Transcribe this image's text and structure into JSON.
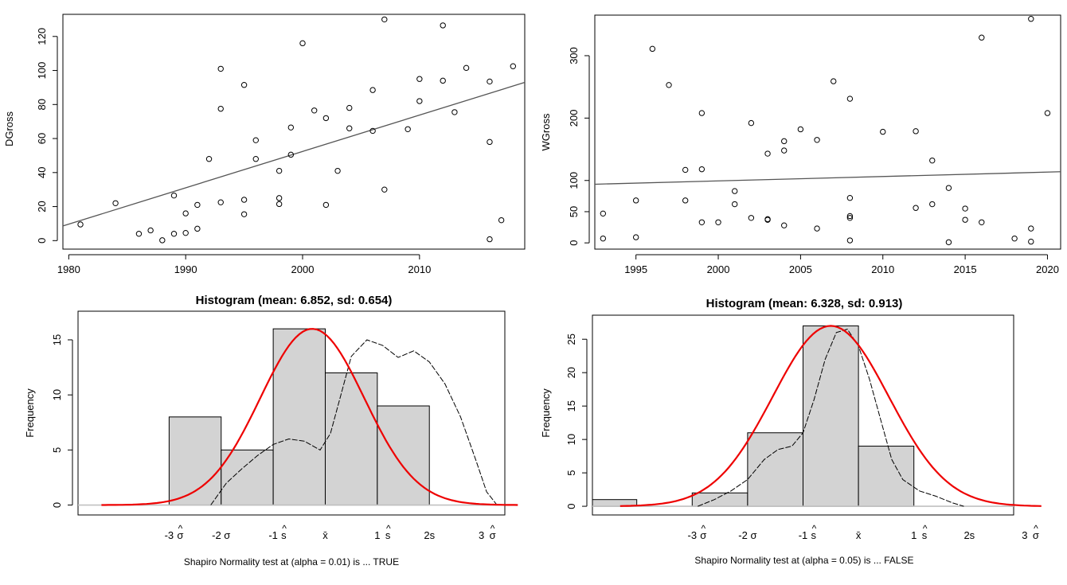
{
  "chart_data": [
    {
      "type": "scatter",
      "ylabel": "DGross",
      "xlim": [
        1979.5,
        2019
      ],
      "ylim": [
        -5,
        133
      ],
      "xticks": [
        1980,
        1990,
        2000,
        2010
      ],
      "yticks": [
        0,
        20,
        40,
        60,
        80,
        100,
        120
      ],
      "trend": {
        "x1": 1979.5,
        "y1": 8.6,
        "x2": 2019,
        "y2": 93
      },
      "points": [
        [
          1981,
          9.5
        ],
        [
          1984,
          22
        ],
        [
          1986,
          4
        ],
        [
          1987,
          6
        ],
        [
          1988,
          0.2
        ],
        [
          1989,
          4
        ],
        [
          1989,
          26.5
        ],
        [
          1990,
          16
        ],
        [
          1990,
          4.5
        ],
        [
          1991,
          7
        ],
        [
          1991,
          21
        ],
        [
          1992,
          48
        ],
        [
          1993,
          101
        ],
        [
          1993,
          77.5
        ],
        [
          1993,
          22.5
        ],
        [
          1995,
          91.5
        ],
        [
          1995,
          24
        ],
        [
          1995,
          15.5
        ],
        [
          1996,
          59
        ],
        [
          1996,
          48
        ],
        [
          1998,
          41
        ],
        [
          1998,
          25
        ],
        [
          1998,
          21.5
        ],
        [
          1999,
          66.5
        ],
        [
          1999,
          50.5
        ],
        [
          2000,
          116
        ],
        [
          2001,
          76.5
        ],
        [
          2002,
          72
        ],
        [
          2002,
          21
        ],
        [
          2003,
          41
        ],
        [
          2004,
          78
        ],
        [
          2004,
          66
        ],
        [
          2006,
          88.5
        ],
        [
          2006,
          64.5
        ],
        [
          2007,
          130
        ],
        [
          2007,
          30
        ],
        [
          2009,
          65.5
        ],
        [
          2010,
          95
        ],
        [
          2010,
          82
        ],
        [
          2012,
          126.5
        ],
        [
          2012,
          94
        ],
        [
          2013,
          75.5
        ],
        [
          2014,
          101.5
        ],
        [
          2016,
          93.5
        ],
        [
          2016,
          58
        ],
        [
          2016,
          0.8
        ],
        [
          2017,
          12
        ],
        [
          2018,
          102.5
        ]
      ]
    },
    {
      "type": "scatter",
      "ylabel": "WGross",
      "xlim": [
        1992.5,
        2020.8
      ],
      "ylim": [
        -10,
        365
      ],
      "xticks": [
        1995,
        2000,
        2005,
        2010,
        2015,
        2020
      ],
      "yticks": [
        0,
        50,
        100,
        200,
        300
      ],
      "trend": {
        "x1": 1992.5,
        "y1": 94,
        "x2": 2020.8,
        "y2": 114
      },
      "points": [
        [
          1993,
          47
        ],
        [
          1993,
          7
        ],
        [
          1995,
          68
        ],
        [
          1995,
          9
        ],
        [
          1996,
          311
        ],
        [
          1997,
          253
        ],
        [
          1998,
          117
        ],
        [
          1998,
          68
        ],
        [
          1999,
          208
        ],
        [
          1999,
          118
        ],
        [
          1999,
          33
        ],
        [
          2000,
          33
        ],
        [
          2001,
          83
        ],
        [
          2001,
          62
        ],
        [
          2002,
          192
        ],
        [
          2002,
          40
        ],
        [
          2003,
          143
        ],
        [
          2003,
          38
        ],
        [
          2003,
          37
        ],
        [
          2004,
          163
        ],
        [
          2004,
          148
        ],
        [
          2004,
          28
        ],
        [
          2005,
          182
        ],
        [
          2006,
          165
        ],
        [
          2006,
          23
        ],
        [
          2007,
          259
        ],
        [
          2008,
          231
        ],
        [
          2008,
          72
        ],
        [
          2008,
          43
        ],
        [
          2008,
          40
        ],
        [
          2008,
          4
        ],
        [
          2010,
          178
        ],
        [
          2012,
          179
        ],
        [
          2012,
          56
        ],
        [
          2013,
          132
        ],
        [
          2013,
          62
        ],
        [
          2014,
          88
        ],
        [
          2014,
          1
        ],
        [
          2015,
          55
        ],
        [
          2015,
          37
        ],
        [
          2016,
          329
        ],
        [
          2016,
          33
        ],
        [
          2018,
          7
        ],
        [
          2019,
          359
        ],
        [
          2019,
          23
        ],
        [
          2019,
          2
        ],
        [
          2020,
          208
        ]
      ]
    },
    {
      "type": "bar",
      "title": "Histogram (mean: 6.852, sd: 0.654)",
      "ylabel": "Frequency",
      "xlabel": "Shapiro Normality test at (alpha = 0.01) is ... TRUE",
      "xlim": [
        -3.75,
        4.45
      ],
      "ylim": [
        -0.9,
        17.6
      ],
      "yticks": [
        0,
        5,
        10,
        15
      ],
      "bins": [
        {
          "start": -2.0,
          "end": -1.0,
          "count": 8
        },
        {
          "start": -1.0,
          "end": 0.0,
          "count": 5
        },
        {
          "start": 0.0,
          "end": 1.0,
          "count": 16
        },
        {
          "start": 1.0,
          "end": 2.0,
          "count": 12
        },
        {
          "start": 2.0,
          "end": 3.0,
          "count": 9
        }
      ],
      "normal": {
        "mu": 0.75,
        "sigma": 1.0,
        "peak": 16,
        "from": -3.3,
        "to": 4.7
      },
      "density": [
        [
          -1.2,
          0
        ],
        [
          -0.9,
          2
        ],
        [
          -0.6,
          3.3
        ],
        [
          -0.3,
          4.5
        ],
        [
          0.0,
          5.5
        ],
        [
          0.3,
          6
        ],
        [
          0.6,
          5.8
        ],
        [
          0.9,
          5
        ],
        [
          1.1,
          6.5
        ],
        [
          1.3,
          10
        ],
        [
          1.5,
          13.5
        ],
        [
          1.8,
          15
        ],
        [
          2.1,
          14.5
        ],
        [
          2.4,
          13.4
        ],
        [
          2.7,
          14
        ],
        [
          3.0,
          13
        ],
        [
          3.3,
          11
        ],
        [
          3.6,
          8
        ],
        [
          3.9,
          4
        ],
        [
          4.1,
          1.2
        ],
        [
          4.3,
          0
        ]
      ],
      "sigma_ticks": [
        {
          "sym": "-3",
          "hat": "σ",
          "at": -2.0
        },
        {
          "sym": "-2 σ",
          "hat": "",
          "at": -1.0
        },
        {
          "sym": "-1",
          "hat": "s",
          "at": 0.0
        },
        {
          "sym": "x̄",
          "hat": "",
          "at": 1.0
        },
        {
          "sym": "1",
          "hat": "s",
          "at": 2.0
        },
        {
          "sym": "2s",
          "hat": "",
          "at": 3.0
        },
        {
          "sym": "3",
          "hat": "σ",
          "at": 4.0
        }
      ]
    },
    {
      "type": "bar",
      "title": "Histogram (mean: 6.328, sd: 0.913)",
      "ylabel": "Frequency",
      "xlabel": "Shapiro Normality test at (alpha = 0.05) is ... FALSE",
      "xlim": [
        -4.3,
        3.3
      ],
      "ylim": [
        -1.3,
        28.6
      ],
      "yticks": [
        0,
        5,
        10,
        15,
        20,
        25
      ],
      "bins": [
        {
          "start": -4.5,
          "end": -3.5,
          "count": 1
        },
        {
          "start": -3.5,
          "end": -2.5,
          "count": 0
        },
        {
          "start": -2.5,
          "end": -1.5,
          "count": 2
        },
        {
          "start": -1.5,
          "end": -0.5,
          "count": 11
        },
        {
          "start": -0.5,
          "end": 0.5,
          "count": 27
        },
        {
          "start": 0.5,
          "end": 1.5,
          "count": 9
        }
      ],
      "normal": {
        "mu": 0.0,
        "sigma": 1.05,
        "peak": 27,
        "from": -3.8,
        "to": 3.8
      },
      "density": [
        [
          -2.4,
          0
        ],
        [
          -2.1,
          1
        ],
        [
          -1.8,
          2.3
        ],
        [
          -1.5,
          4
        ],
        [
          -1.2,
          7
        ],
        [
          -0.95,
          8.5
        ],
        [
          -0.7,
          9
        ],
        [
          -0.5,
          11
        ],
        [
          -0.3,
          16
        ],
        [
          -0.1,
          22
        ],
        [
          0.1,
          26
        ],
        [
          0.3,
          26.5
        ],
        [
          0.5,
          24
        ],
        [
          0.7,
          19
        ],
        [
          0.9,
          13
        ],
        [
          1.1,
          7
        ],
        [
          1.3,
          4
        ],
        [
          1.6,
          2.3
        ],
        [
          1.9,
          1.5
        ],
        [
          2.2,
          0.5
        ],
        [
          2.4,
          0
        ]
      ],
      "sigma_ticks": [
        {
          "sym": "-3",
          "hat": "σ",
          "at": -2.5
        },
        {
          "sym": "-2 σ",
          "hat": "",
          "at": -1.5
        },
        {
          "sym": "-1",
          "hat": "s",
          "at": -0.5
        },
        {
          "sym": "x̄",
          "hat": "",
          "at": 0.5
        },
        {
          "sym": "1",
          "hat": "s",
          "at": 1.5
        },
        {
          "sym": "2s",
          "hat": "",
          "at": 2.5
        },
        {
          "sym": "3",
          "hat": "σ",
          "at": 3.5
        }
      ]
    }
  ]
}
